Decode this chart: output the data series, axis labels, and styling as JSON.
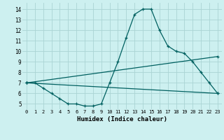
{
  "title": "",
  "xlabel": "Humidex (Indice chaleur)",
  "ylabel": "",
  "bg_color": "#cdf0f0",
  "grid_color": "#aad4d4",
  "line_color": "#006060",
  "xlim": [
    -0.5,
    23.5
  ],
  "ylim": [
    4.5,
    14.6
  ],
  "xticks": [
    0,
    1,
    2,
    3,
    4,
    5,
    6,
    7,
    8,
    9,
    10,
    11,
    12,
    13,
    14,
    15,
    16,
    17,
    18,
    19,
    20,
    21,
    22,
    23
  ],
  "yticks": [
    5,
    6,
    7,
    8,
    9,
    10,
    11,
    12,
    13,
    14
  ],
  "line1_x": [
    0,
    1,
    2,
    3,
    4,
    5,
    6,
    7,
    8,
    9,
    10,
    11,
    12,
    13,
    14,
    15,
    16,
    17,
    18,
    19,
    20,
    21,
    22,
    23
  ],
  "line1_y": [
    7.0,
    7.0,
    6.5,
    6.0,
    5.5,
    5.0,
    5.0,
    4.8,
    4.8,
    5.0,
    7.0,
    9.0,
    11.3,
    13.5,
    14.0,
    14.0,
    12.0,
    10.5,
    10.0,
    9.8,
    9.0,
    8.0,
    7.0,
    6.0
  ],
  "line2_x": [
    0,
    23
  ],
  "line2_y": [
    7.0,
    6.0
  ],
  "line3_x": [
    0,
    23
  ],
  "line3_y": [
    7.0,
    9.5
  ]
}
